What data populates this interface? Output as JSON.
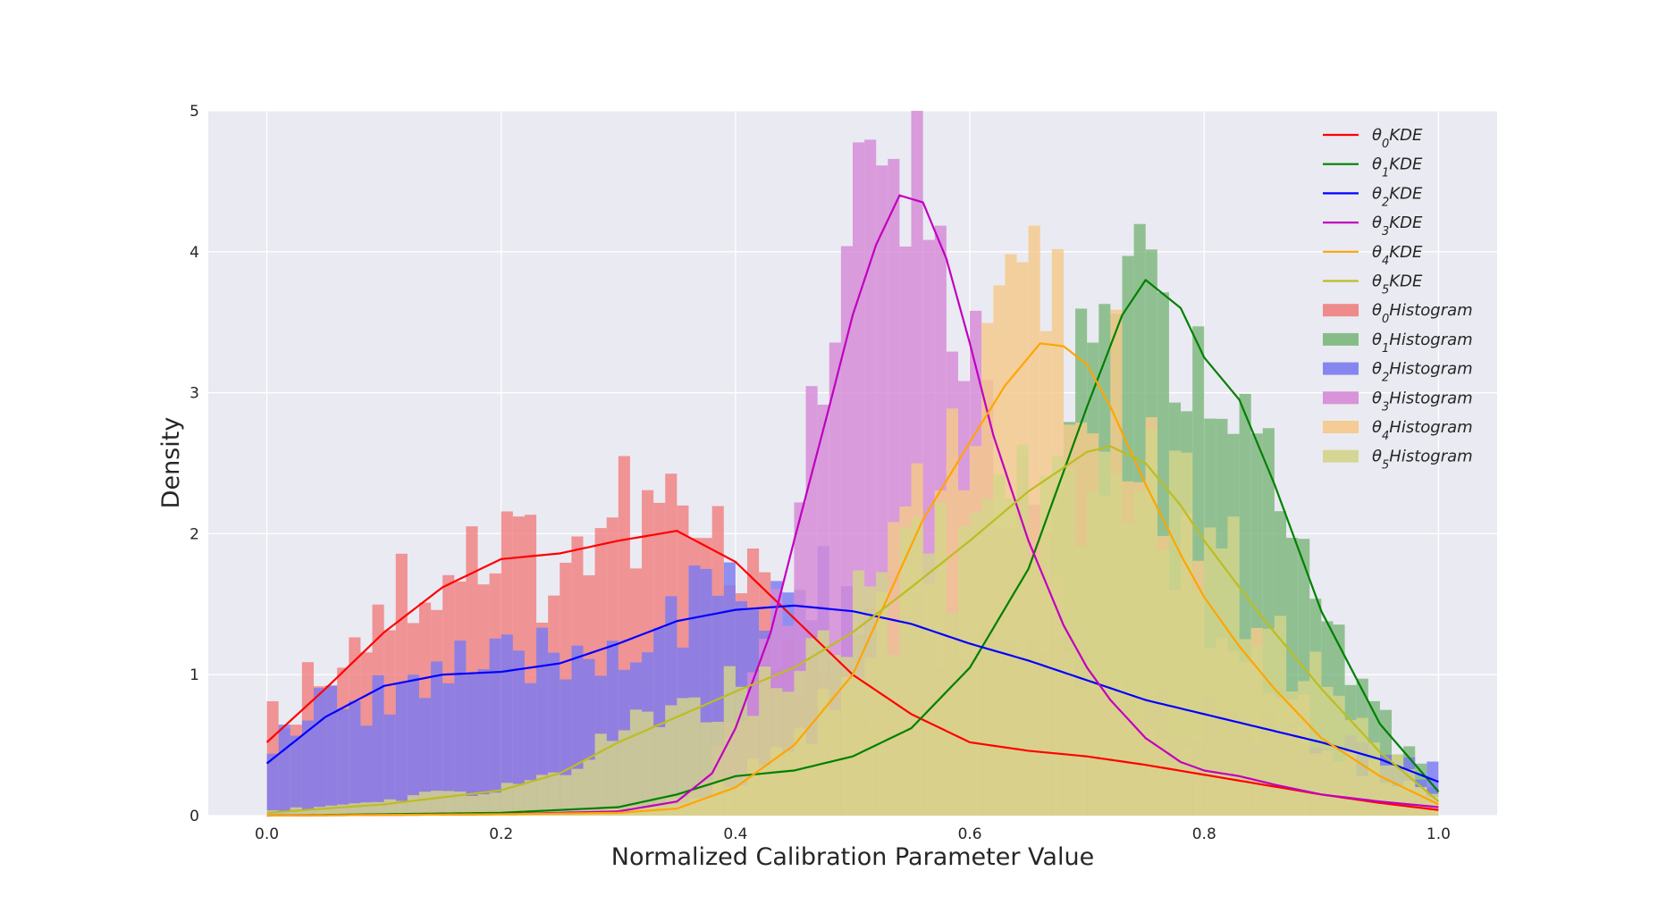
{
  "chart_data": {
    "type": "histogram+kde",
    "xlabel": "Normalized Calibration Parameter Value",
    "ylabel": "Density",
    "xlim": [
      -0.05,
      1.05
    ],
    "ylim": [
      0,
      5
    ],
    "xticks": [
      "0.0",
      "0.2",
      "0.4",
      "0.6",
      "0.8",
      "1.0"
    ],
    "yticks": [
      "0",
      "1",
      "2",
      "3",
      "4",
      "5"
    ],
    "grid": true,
    "legend_position": "top-right",
    "bins": 100,
    "series": [
      {
        "id": "theta0",
        "kde_label": "θ0KDE",
        "hist_label": "θ0Histogram",
        "color": "#ff0000",
        "hist_color": "#f08080",
        "kde": [
          [
            0.0,
            0.52
          ],
          [
            0.05,
            0.9
          ],
          [
            0.1,
            1.3
          ],
          [
            0.15,
            1.62
          ],
          [
            0.2,
            1.82
          ],
          [
            0.25,
            1.86
          ],
          [
            0.3,
            1.95
          ],
          [
            0.35,
            2.02
          ],
          [
            0.4,
            1.8
          ],
          [
            0.45,
            1.4
          ],
          [
            0.5,
            1.0
          ],
          [
            0.55,
            0.72
          ],
          [
            0.6,
            0.52
          ],
          [
            0.65,
            0.46
          ],
          [
            0.7,
            0.42
          ],
          [
            0.75,
            0.36
          ],
          [
            0.8,
            0.29
          ],
          [
            0.85,
            0.22
          ],
          [
            0.9,
            0.15
          ],
          [
            0.95,
            0.09
          ],
          [
            1.0,
            0.04
          ]
        ],
        "hist_profile": [
          [
            0.0,
            0.6
          ],
          [
            0.05,
            1.1
          ],
          [
            0.1,
            1.5
          ],
          [
            0.15,
            1.8
          ],
          [
            0.2,
            1.9
          ],
          [
            0.25,
            1.8
          ],
          [
            0.3,
            2.1
          ],
          [
            0.35,
            2.1
          ],
          [
            0.4,
            1.7
          ],
          [
            0.45,
            1.2
          ],
          [
            0.5,
            0.9
          ],
          [
            0.55,
            0.65
          ],
          [
            0.6,
            0.5
          ],
          [
            0.65,
            0.45
          ],
          [
            0.7,
            0.4
          ],
          [
            0.75,
            0.35
          ],
          [
            0.8,
            0.28
          ],
          [
            0.85,
            0.2
          ],
          [
            0.9,
            0.14
          ],
          [
            0.95,
            0.08
          ],
          [
            1.0,
            0.04
          ]
        ]
      },
      {
        "id": "theta1",
        "kde_label": "θ1KDE",
        "hist_label": "θ1Histogram",
        "color": "#008000",
        "hist_color": "#7cb77c",
        "kde": [
          [
            0.0,
            0.0
          ],
          [
            0.1,
            0.01
          ],
          [
            0.2,
            0.02
          ],
          [
            0.3,
            0.06
          ],
          [
            0.35,
            0.15
          ],
          [
            0.4,
            0.28
          ],
          [
            0.45,
            0.32
          ],
          [
            0.5,
            0.42
          ],
          [
            0.55,
            0.62
          ],
          [
            0.6,
            1.05
          ],
          [
            0.65,
            1.75
          ],
          [
            0.7,
            2.9
          ],
          [
            0.73,
            3.55
          ],
          [
            0.75,
            3.8
          ],
          [
            0.78,
            3.6
          ],
          [
            0.8,
            3.25
          ],
          [
            0.83,
            2.95
          ],
          [
            0.86,
            2.35
          ],
          [
            0.9,
            1.45
          ],
          [
            0.95,
            0.65
          ],
          [
            1.0,
            0.17
          ]
        ],
        "hist_profile": [
          [
            0.0,
            0.0
          ],
          [
            0.1,
            0.02
          ],
          [
            0.2,
            0.04
          ],
          [
            0.3,
            0.08
          ],
          [
            0.35,
            0.18
          ],
          [
            0.4,
            0.3
          ],
          [
            0.45,
            0.35
          ],
          [
            0.5,
            0.45
          ],
          [
            0.55,
            0.65
          ],
          [
            0.6,
            1.1
          ],
          [
            0.65,
            1.8
          ],
          [
            0.7,
            3.0
          ],
          [
            0.73,
            3.7
          ],
          [
            0.75,
            3.9
          ],
          [
            0.78,
            3.7
          ],
          [
            0.8,
            3.3
          ],
          [
            0.83,
            3.0
          ],
          [
            0.86,
            2.4
          ],
          [
            0.9,
            1.5
          ],
          [
            0.95,
            0.7
          ],
          [
            1.0,
            0.2
          ]
        ]
      },
      {
        "id": "theta2",
        "kde_label": "θ2KDE",
        "hist_label": "θ2Histogram",
        "color": "#0000ff",
        "hist_color": "#7b7bf0",
        "kde": [
          [
            0.0,
            0.37
          ],
          [
            0.05,
            0.7
          ],
          [
            0.1,
            0.92
          ],
          [
            0.15,
            1.0
          ],
          [
            0.2,
            1.02
          ],
          [
            0.25,
            1.08
          ],
          [
            0.3,
            1.22
          ],
          [
            0.35,
            1.38
          ],
          [
            0.4,
            1.46
          ],
          [
            0.45,
            1.49
          ],
          [
            0.5,
            1.45
          ],
          [
            0.55,
            1.36
          ],
          [
            0.6,
            1.22
          ],
          [
            0.65,
            1.1
          ],
          [
            0.7,
            0.96
          ],
          [
            0.75,
            0.82
          ],
          [
            0.8,
            0.72
          ],
          [
            0.85,
            0.62
          ],
          [
            0.9,
            0.52
          ],
          [
            0.95,
            0.4
          ],
          [
            1.0,
            0.24
          ]
        ],
        "hist_profile": [
          [
            0.0,
            0.5
          ],
          [
            0.05,
            0.75
          ],
          [
            0.1,
            0.9
          ],
          [
            0.15,
            1.05
          ],
          [
            0.2,
            1.0
          ],
          [
            0.25,
            1.1
          ],
          [
            0.3,
            1.25
          ],
          [
            0.35,
            1.4
          ],
          [
            0.4,
            1.5
          ],
          [
            0.45,
            1.55
          ],
          [
            0.5,
            1.45
          ],
          [
            0.55,
            1.35
          ],
          [
            0.6,
            1.2
          ],
          [
            0.65,
            1.1
          ],
          [
            0.7,
            0.95
          ],
          [
            0.75,
            0.8
          ],
          [
            0.8,
            0.7
          ],
          [
            0.85,
            0.6
          ],
          [
            0.9,
            0.5
          ],
          [
            0.95,
            0.4
          ],
          [
            1.0,
            0.3
          ]
        ]
      },
      {
        "id": "theta3",
        "kde_label": "θ3KDE",
        "hist_label": "θ3Histogram",
        "color": "#c000c0",
        "hist_color": "#d68ad6",
        "kde": [
          [
            0.0,
            0.0
          ],
          [
            0.2,
            0.01
          ],
          [
            0.3,
            0.03
          ],
          [
            0.35,
            0.1
          ],
          [
            0.38,
            0.3
          ],
          [
            0.4,
            0.62
          ],
          [
            0.43,
            1.3
          ],
          [
            0.45,
            1.95
          ],
          [
            0.48,
            2.9
          ],
          [
            0.5,
            3.55
          ],
          [
            0.52,
            4.05
          ],
          [
            0.54,
            4.4
          ],
          [
            0.56,
            4.35
          ],
          [
            0.58,
            3.95
          ],
          [
            0.6,
            3.35
          ],
          [
            0.62,
            2.7
          ],
          [
            0.65,
            1.95
          ],
          [
            0.68,
            1.35
          ],
          [
            0.7,
            1.05
          ],
          [
            0.72,
            0.82
          ],
          [
            0.75,
            0.55
          ],
          [
            0.78,
            0.38
          ],
          [
            0.8,
            0.32
          ],
          [
            0.83,
            0.28
          ],
          [
            0.86,
            0.22
          ],
          [
            0.9,
            0.15
          ],
          [
            0.95,
            0.1
          ],
          [
            1.0,
            0.06
          ]
        ],
        "hist_profile": [
          [
            0.0,
            0.0
          ],
          [
            0.2,
            0.02
          ],
          [
            0.3,
            0.05
          ],
          [
            0.35,
            0.12
          ],
          [
            0.38,
            0.35
          ],
          [
            0.4,
            0.7
          ],
          [
            0.43,
            1.4
          ],
          [
            0.45,
            2.0
          ],
          [
            0.48,
            3.1
          ],
          [
            0.5,
            3.7
          ],
          [
            0.52,
            4.2
          ],
          [
            0.54,
            4.5
          ],
          [
            0.56,
            4.3
          ],
          [
            0.58,
            3.9
          ],
          [
            0.6,
            3.3
          ],
          [
            0.62,
            2.6
          ],
          [
            0.65,
            1.9
          ],
          [
            0.68,
            1.3
          ],
          [
            0.7,
            1.0
          ],
          [
            0.72,
            0.8
          ],
          [
            0.75,
            0.55
          ],
          [
            0.78,
            0.4
          ],
          [
            0.8,
            0.32
          ],
          [
            0.83,
            0.27
          ],
          [
            0.86,
            0.2
          ],
          [
            0.9,
            0.15
          ],
          [
            0.95,
            0.1
          ],
          [
            1.0,
            0.06
          ]
        ]
      },
      {
        "id": "theta4",
        "kde_label": "θ4KDE",
        "hist_label": "θ4Histogram",
        "color": "#ffa500",
        "hist_color": "#f5c98a",
        "kde": [
          [
            0.0,
            0.0
          ],
          [
            0.2,
            0.01
          ],
          [
            0.3,
            0.02
          ],
          [
            0.35,
            0.05
          ],
          [
            0.4,
            0.2
          ],
          [
            0.45,
            0.5
          ],
          [
            0.5,
            1.0
          ],
          [
            0.53,
            1.55
          ],
          [
            0.56,
            2.1
          ],
          [
            0.6,
            2.65
          ],
          [
            0.63,
            3.05
          ],
          [
            0.66,
            3.35
          ],
          [
            0.68,
            3.33
          ],
          [
            0.7,
            3.2
          ],
          [
            0.72,
            2.9
          ],
          [
            0.75,
            2.35
          ],
          [
            0.78,
            1.85
          ],
          [
            0.8,
            1.55
          ],
          [
            0.83,
            1.2
          ],
          [
            0.86,
            0.9
          ],
          [
            0.9,
            0.55
          ],
          [
            0.95,
            0.28
          ],
          [
            1.0,
            0.08
          ]
        ],
        "hist_profile": [
          [
            0.0,
            0.0
          ],
          [
            0.2,
            0.02
          ],
          [
            0.3,
            0.04
          ],
          [
            0.35,
            0.08
          ],
          [
            0.4,
            0.25
          ],
          [
            0.45,
            0.55
          ],
          [
            0.5,
            1.05
          ],
          [
            0.53,
            1.6
          ],
          [
            0.56,
            2.2
          ],
          [
            0.6,
            2.8
          ],
          [
            0.63,
            3.2
          ],
          [
            0.66,
            3.4
          ],
          [
            0.68,
            3.4
          ],
          [
            0.7,
            3.2
          ],
          [
            0.72,
            2.9
          ],
          [
            0.75,
            2.4
          ],
          [
            0.78,
            1.9
          ],
          [
            0.8,
            1.6
          ],
          [
            0.83,
            1.2
          ],
          [
            0.86,
            0.9
          ],
          [
            0.9,
            0.55
          ],
          [
            0.95,
            0.3
          ],
          [
            1.0,
            0.1
          ]
        ]
      },
      {
        "id": "theta5",
        "kde_label": "θ5KDE",
        "hist_label": "θ5Histogram",
        "color": "#bcbd22",
        "hist_color": "#d4d48a",
        "kde": [
          [
            0.0,
            0.02
          ],
          [
            0.1,
            0.08
          ],
          [
            0.2,
            0.18
          ],
          [
            0.25,
            0.3
          ],
          [
            0.3,
            0.52
          ],
          [
            0.35,
            0.7
          ],
          [
            0.4,
            0.88
          ],
          [
            0.45,
            1.05
          ],
          [
            0.5,
            1.3
          ],
          [
            0.55,
            1.62
          ],
          [
            0.6,
            1.95
          ],
          [
            0.65,
            2.3
          ],
          [
            0.7,
            2.58
          ],
          [
            0.72,
            2.62
          ],
          [
            0.75,
            2.5
          ],
          [
            0.78,
            2.2
          ],
          [
            0.8,
            1.95
          ],
          [
            0.85,
            1.4
          ],
          [
            0.9,
            0.9
          ],
          [
            0.95,
            0.45
          ],
          [
            1.0,
            0.1
          ]
        ],
        "hist_profile": [
          [
            0.0,
            0.03
          ],
          [
            0.1,
            0.1
          ],
          [
            0.2,
            0.2
          ],
          [
            0.25,
            0.32
          ],
          [
            0.3,
            0.55
          ],
          [
            0.35,
            0.75
          ],
          [
            0.4,
            0.9
          ],
          [
            0.45,
            1.1
          ],
          [
            0.5,
            1.35
          ],
          [
            0.55,
            1.65
          ],
          [
            0.6,
            2.0
          ],
          [
            0.65,
            2.35
          ],
          [
            0.7,
            2.6
          ],
          [
            0.72,
            2.65
          ],
          [
            0.75,
            2.5
          ],
          [
            0.78,
            2.2
          ],
          [
            0.8,
            1.95
          ],
          [
            0.85,
            1.4
          ],
          [
            0.9,
            0.9
          ],
          [
            0.95,
            0.45
          ],
          [
            1.0,
            0.12
          ]
        ]
      }
    ]
  }
}
